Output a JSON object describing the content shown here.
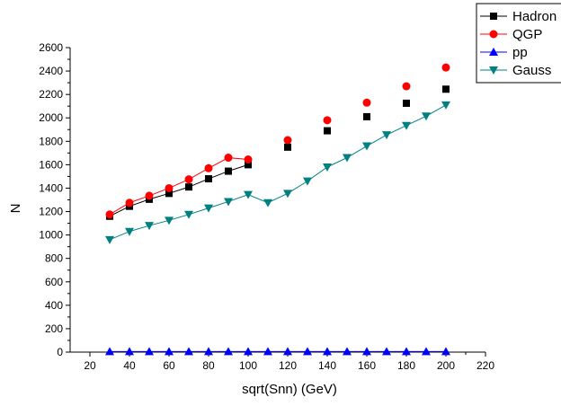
{
  "chart_data": {
    "type": "line",
    "xlabel": "sqrt(Snn) (GeV)",
    "ylabel": "N",
    "xlim": [
      10,
      220
    ],
    "ylim": [
      0,
      2600
    ],
    "xticks": [
      "20",
      "40",
      "60",
      "80",
      "100",
      "120",
      "140",
      "160",
      "180",
      "200",
      "220"
    ],
    "yticks": [
      "0",
      "200",
      "400",
      "600",
      "800",
      "1000",
      "1200",
      "1400",
      "1600",
      "1800",
      "2000",
      "2200",
      "2400",
      "2600"
    ],
    "legend_position": "top-right",
    "series": [
      {
        "name": "Hadron",
        "marker": "square",
        "color": "#000000",
        "line_color": "#000000",
        "x": [
          30,
          40,
          50,
          60,
          70,
          80,
          90,
          100,
          120,
          140,
          160,
          180,
          200
        ],
        "y": [
          1160,
          1245,
          1305,
          1355,
          1410,
          1480,
          1545,
          1600,
          1750,
          1890,
          2010,
          2125,
          2245
        ],
        "line_until_x": 100
      },
      {
        "name": "QGP",
        "marker": "circle",
        "color": "#ff0000",
        "line_color": "#ff0000",
        "x": [
          30,
          40,
          50,
          60,
          70,
          80,
          90,
          100,
          120,
          140,
          160,
          180,
          200
        ],
        "y": [
          1175,
          1275,
          1335,
          1400,
          1475,
          1570,
          1660,
          1645,
          1810,
          1980,
          2130,
          2270,
          2430
        ],
        "line_until_x": 100
      },
      {
        "name": "pp",
        "marker": "triangle-up",
        "color": "#0000ff",
        "line_color": "#0000ff",
        "x": [
          30,
          40,
          50,
          60,
          70,
          80,
          90,
          100,
          110,
          120,
          130,
          140,
          150,
          160,
          170,
          180,
          190,
          200
        ],
        "y": [
          5,
          5,
          5,
          5,
          5,
          5,
          5,
          5,
          5,
          5,
          5,
          5,
          5,
          5,
          5,
          5,
          5,
          5
        ],
        "line_until_x": 200
      },
      {
        "name": "Gauss",
        "marker": "triangle-down",
        "color": "#008080",
        "line_color": "#008080",
        "x": [
          30,
          40,
          50,
          60,
          70,
          80,
          90,
          100,
          110,
          120,
          130,
          140,
          150,
          160,
          170,
          180,
          190,
          200
        ],
        "y": [
          960,
          1030,
          1080,
          1125,
          1175,
          1230,
          1285,
          1345,
          1275,
          1355,
          1460,
          1580,
          1660,
          1760,
          1855,
          1935,
          2015,
          2110
        ],
        "line_until_x": 200
      }
    ]
  }
}
